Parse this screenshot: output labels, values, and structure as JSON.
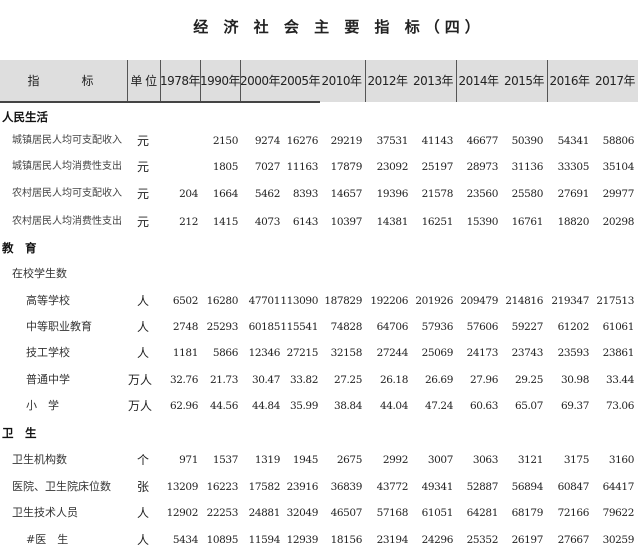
{
  "title": "经 济 社 会 主 要 指 标（四）",
  "header": {
    "indicator": "指　　标",
    "unit": "单 位",
    "years": [
      "1978年",
      "1990年",
      "2000年",
      "2005年",
      "2010年",
      "2012年",
      "2013年",
      "2014年",
      "2015年",
      "2016年",
      "2017年"
    ]
  },
  "rows": [
    {
      "type": "section",
      "label": "人民生活"
    },
    {
      "type": "data",
      "level": 1,
      "small": true,
      "label": "城镇居民人均可支配收入",
      "unit": "元",
      "values": [
        "",
        "2150",
        "9274",
        "16276",
        "29219",
        "37531",
        "41143",
        "46677",
        "50390",
        "54341",
        "58806"
      ]
    },
    {
      "type": "data",
      "level": 1,
      "small": true,
      "label": "城镇居民人均消费性支出",
      "unit": "元",
      "values": [
        "",
        "1805",
        "7027",
        "11163",
        "17879",
        "23092",
        "25197",
        "28973",
        "31136",
        "33305",
        "35104"
      ]
    },
    {
      "type": "data",
      "level": 1,
      "small": true,
      "label": "农村居民人均可支配收入",
      "unit": "元",
      "values": [
        "204",
        "1664",
        "5462",
        "8393",
        "14657",
        "19396",
        "21578",
        "23560",
        "25580",
        "27691",
        "29977"
      ]
    },
    {
      "type": "data",
      "level": 1,
      "small": true,
      "label": "农村居民人均消费性支出",
      "unit": "元",
      "values": [
        "212",
        "1415",
        "4073",
        "6143",
        "10397",
        "14381",
        "16251",
        "15390",
        "16761",
        "18820",
        "20298"
      ]
    },
    {
      "type": "section",
      "label": "教　育"
    },
    {
      "type": "data",
      "level": 1,
      "label": "在校学生数",
      "unit": "",
      "values": []
    },
    {
      "type": "data",
      "level": 2,
      "label": "高等学校",
      "unit": "人",
      "values": [
        "6502",
        "16280",
        "47701",
        "113090",
        "187829",
        "192206",
        "201926",
        "209479",
        "214816",
        "219347",
        "217513"
      ]
    },
    {
      "type": "data",
      "level": 2,
      "label": "中等职业教育",
      "unit": "人",
      "values": [
        "2748",
        "25293",
        "60185",
        "115541",
        "74828",
        "64706",
        "57936",
        "57606",
        "59227",
        "61202",
        "61061"
      ]
    },
    {
      "type": "data",
      "level": 2,
      "label": "技工学校",
      "unit": "人",
      "values": [
        "1181",
        "5866",
        "12346",
        "27215",
        "32158",
        "27244",
        "25069",
        "24173",
        "23743",
        "23593",
        "23861"
      ]
    },
    {
      "type": "data",
      "level": 2,
      "label": "普通中学",
      "unit": "万人",
      "values": [
        "32.76",
        "21.73",
        "30.47",
        "33.82",
        "27.25",
        "26.18",
        "26.69",
        "27.96",
        "29.25",
        "30.98",
        "33.44"
      ]
    },
    {
      "type": "data",
      "level": 2,
      "label": "小　学",
      "unit": "万人",
      "values": [
        "62.96",
        "44.56",
        "44.84",
        "35.99",
        "38.84",
        "44.04",
        "47.24",
        "60.63",
        "65.07",
        "69.37",
        "73.06"
      ]
    },
    {
      "type": "section",
      "label": "卫　生"
    },
    {
      "type": "data",
      "level": 1,
      "label": "卫生机构数",
      "unit": "个",
      "values": [
        "971",
        "1537",
        "1319",
        "1945",
        "2675",
        "2992",
        "3007",
        "3063",
        "3121",
        "3175",
        "3160"
      ]
    },
    {
      "type": "data",
      "level": 1,
      "label": "医院、卫生院床位数",
      "unit": "张",
      "values": [
        "13209",
        "16223",
        "17582",
        "23916",
        "36839",
        "43772",
        "49341",
        "52887",
        "56894",
        "60847",
        "64417"
      ]
    },
    {
      "type": "data",
      "level": 1,
      "label": "卫生技术人员",
      "unit": "人",
      "values": [
        "12902",
        "22253",
        "24881",
        "32049",
        "46507",
        "57168",
        "61051",
        "64281",
        "68179",
        "72166",
        "79622"
      ]
    },
    {
      "type": "data",
      "level": 2,
      "label": "#医　生",
      "unit": "人",
      "values": [
        "5434",
        "10895",
        "11594",
        "12939",
        "18156",
        "23194",
        "24296",
        "25352",
        "26197",
        "27667",
        "30259"
      ]
    }
  ]
}
